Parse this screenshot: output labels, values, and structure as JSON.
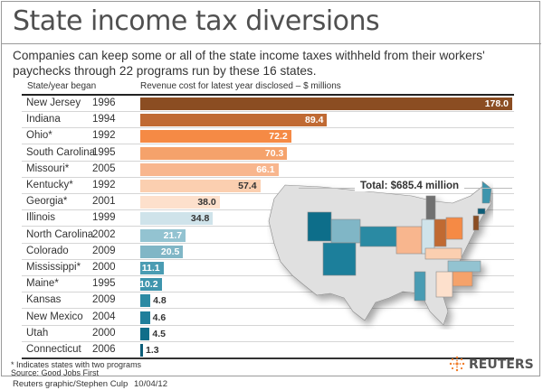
{
  "title": "State income tax diversions",
  "subtitle": "Companies can keep some or all of the state income taxes withheld from their workers' paychecks through 22 programs run by these 16 states.",
  "column_headers": {
    "state": "State/year began",
    "value": "Revenue cost for latest year disclosed – $ millions"
  },
  "total_label": "Total: $685.4 million",
  "footnote": "* Indicates states with two programs",
  "source": "Source: Good Jobs First",
  "credit": "Reuters graphic/Stephen Culp",
  "date": "10/04/12",
  "logo_text": "REUTERS",
  "logo_color": "#f07c2a",
  "chart_data": {
    "type": "bar",
    "orientation": "horizontal",
    "title": "State income tax diversions",
    "xlabel": "Revenue cost for latest year disclosed – $ millions",
    "ylabel": "State/year began",
    "xlim": [
      0,
      178
    ],
    "grid": false,
    "categories": [
      "New Jersey",
      "Indiana",
      "Ohio*",
      "South Carolina",
      "Missouri*",
      "Kentucky*",
      "Georgia*",
      "Illinois",
      "North Carolina",
      "Colorado",
      "Mississippi*",
      "Maine*",
      "Kansas",
      "New Mexico",
      "Utah",
      "Connecticut"
    ],
    "years": [
      "1996",
      "1994",
      "1992",
      "1995",
      "2005",
      "1992",
      "2001",
      "1999",
      "2002",
      "2009",
      "2000",
      "1995",
      "2009",
      "2004",
      "2000",
      "2006"
    ],
    "values": [
      178.0,
      89.4,
      72.2,
      70.3,
      66.1,
      57.4,
      38.0,
      34.8,
      21.7,
      20.5,
      11.1,
      10.2,
      4.8,
      4.6,
      4.5,
      1.3
    ],
    "value_labels": [
      "178.0",
      "89.4",
      "72.2",
      "70.3",
      "66.1",
      "57.4",
      "38.0",
      "34.8",
      "21.7",
      "20.5",
      "11.1",
      "10.2",
      "4.8",
      "4.6",
      "4.5",
      "1.3"
    ],
    "colors": [
      "#8b4d22",
      "#c06a33",
      "#f58a45",
      "#f5a26b",
      "#f8b68e",
      "#fbcfb0",
      "#fde0cc",
      "#cfe3ea",
      "#93c3d1",
      "#80b6c6",
      "#4a9cb3",
      "#3e95ad",
      "#2b8aa3",
      "#1f7f9b",
      "#0f6e8a",
      "#0b5d78"
    ],
    "label_colors": [
      "#ffffff",
      "#ffffff",
      "#ffffff",
      "#ffffff",
      "#ffffff",
      "#333333",
      "#333333",
      "#333333",
      "#ffffff",
      "#ffffff",
      "#ffffff",
      "#ffffff",
      "#333333",
      "#333333",
      "#333333",
      "#333333"
    ],
    "label_inside": [
      true,
      true,
      true,
      true,
      true,
      true,
      true,
      true,
      true,
      true,
      true,
      true,
      false,
      false,
      false,
      false
    ],
    "annotation": "Total: $685.4 million"
  }
}
